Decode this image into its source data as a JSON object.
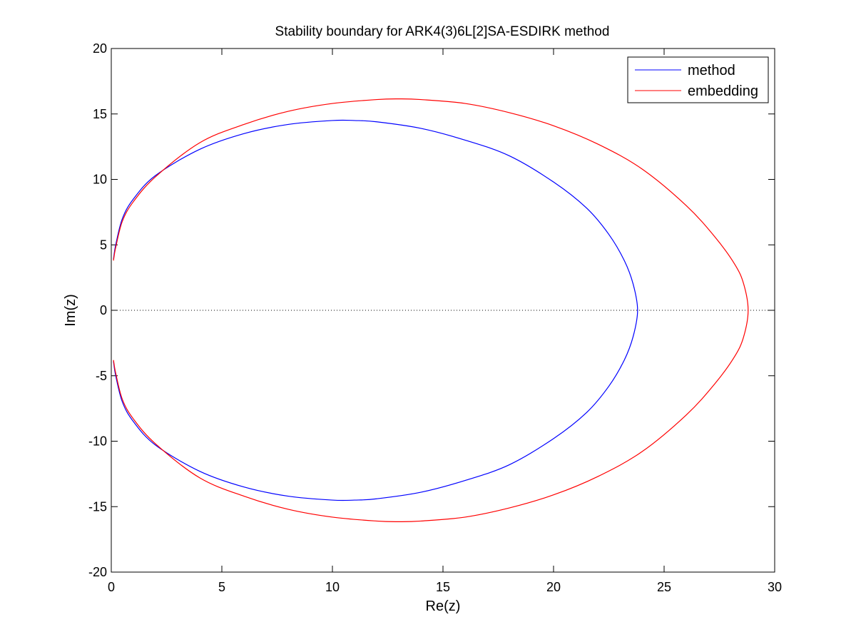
{
  "chart_data": {
    "type": "line",
    "title": "Stability boundary for ARK4(3)6L[2]SA-ESDIRK method",
    "xlabel": "Re(z)",
    "ylabel": "Im(z)",
    "xlim": [
      0,
      30
    ],
    "ylim": [
      -20,
      20
    ],
    "xticks": [
      0,
      5,
      10,
      15,
      20,
      25,
      30
    ],
    "yticks": [
      -20,
      -15,
      -10,
      -5,
      0,
      5,
      10,
      15,
      20
    ],
    "xtick_labels": [
      "0",
      "5",
      "10",
      "15",
      "20",
      "25",
      "30"
    ],
    "ytick_labels": [
      "-20",
      "-15",
      "-10",
      "-5",
      "0",
      "5",
      "10",
      "15",
      "20"
    ],
    "grid": false,
    "legend_position": "top-right",
    "reference_line": {
      "y": 0,
      "style": "dotted"
    },
    "series": [
      {
        "name": "method",
        "color": "#0000ff",
        "x": [
          0.1,
          0.2,
          0.5,
          1.0,
          2.0,
          4.0,
          6.0,
          8.0,
          10.0,
          11.0,
          12.0,
          14.0,
          16.0,
          18.0,
          20.0,
          21.5,
          22.5,
          23.2,
          23.6,
          23.8,
          23.6,
          23.2,
          22.5,
          21.5,
          20.0,
          18.0,
          16.0,
          14.0,
          12.0,
          11.0,
          10.0,
          8.0,
          6.0,
          4.0,
          2.0,
          1.0,
          0.5,
          0.2,
          0.1
        ],
        "y": [
          3.9,
          5.0,
          7.0,
          8.5,
          10.3,
          12.3,
          13.5,
          14.2,
          14.5,
          14.5,
          14.4,
          13.9,
          13.0,
          11.8,
          9.8,
          7.8,
          5.8,
          3.8,
          2.0,
          0.0,
          -2.0,
          -3.8,
          -5.8,
          -7.8,
          -9.8,
          -11.8,
          -13.0,
          -13.9,
          -14.4,
          -14.5,
          -14.5,
          -14.2,
          -13.5,
          -12.3,
          -10.3,
          -8.5,
          -7.0,
          -5.0,
          -3.9
        ]
      },
      {
        "name": "embedding",
        "color": "#ff0000",
        "x": [
          0.1,
          0.2,
          0.5,
          1.0,
          2.0,
          4.0,
          6.0,
          8.0,
          10.0,
          12.0,
          13.0,
          14.0,
          16.0,
          18.0,
          20.0,
          22.0,
          24.0,
          26.0,
          27.3,
          28.2,
          28.6,
          28.8,
          28.6,
          28.2,
          27.3,
          26.0,
          24.0,
          22.0,
          20.0,
          18.0,
          16.0,
          14.0,
          13.0,
          12.0,
          10.0,
          8.0,
          6.0,
          4.0,
          2.0,
          1.0,
          0.5,
          0.2,
          0.1
        ],
        "y": [
          3.8,
          4.8,
          6.8,
          8.3,
          10.2,
          12.8,
          14.2,
          15.2,
          15.8,
          16.1,
          16.15,
          16.1,
          15.8,
          15.1,
          14.1,
          12.7,
          10.8,
          8.0,
          5.6,
          3.5,
          2.0,
          0.0,
          -2.0,
          -3.5,
          -5.6,
          -8.0,
          -10.8,
          -12.7,
          -14.1,
          -15.1,
          -15.8,
          -16.1,
          -16.15,
          -16.1,
          -15.8,
          -15.2,
          -14.2,
          -12.8,
          -10.2,
          -8.3,
          -6.8,
          -4.8,
          -3.8
        ]
      }
    ]
  }
}
